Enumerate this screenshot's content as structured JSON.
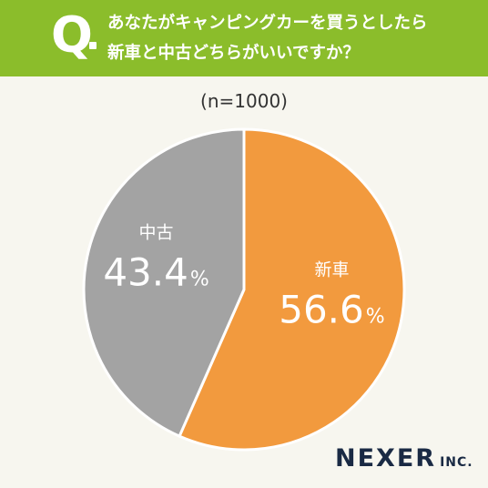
{
  "question": {
    "marker": "Q",
    "line1": "あなたがキャンピングカーを買うとしたら",
    "line2": "新車と中古どちらがいいですか？"
  },
  "sample_size": "(n=1000)",
  "chart_data": {
    "type": "pie",
    "slices": [
      {
        "label": "新車",
        "value": 56.6,
        "display": "56.6",
        "unit": "%",
        "color": "#f29a3e"
      },
      {
        "label": "中古",
        "value": 43.4,
        "display": "43.4",
        "unit": "%",
        "color": "#a3a3a3"
      }
    ],
    "start": "12 o'clock",
    "direction": "clockwise"
  },
  "logo": {
    "main": "NEXER",
    "suffix": "INC."
  }
}
